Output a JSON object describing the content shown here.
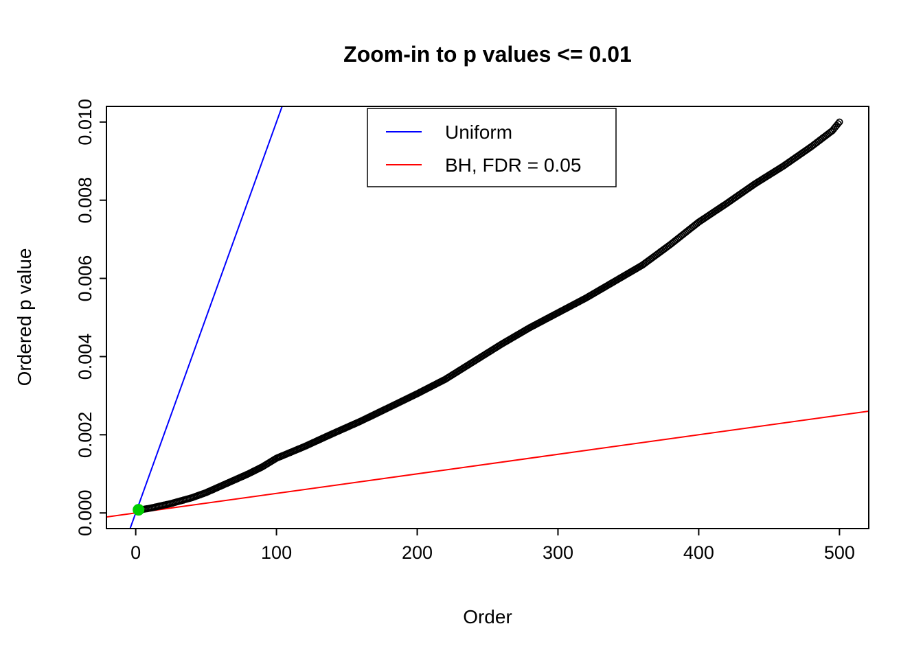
{
  "chart_data": {
    "type": "scatter",
    "title": "Zoom-in to p values <= 0.01",
    "xlabel": "Order",
    "ylabel": "Ordered p value",
    "xlim": [
      -20.8,
      520.8
    ],
    "ylim": [
      -0.0004,
      0.0104
    ],
    "x_ticks": [
      0,
      100,
      200,
      300,
      400,
      500
    ],
    "x_tick_labels": [
      "0",
      "100",
      "200",
      "300",
      "400",
      "500"
    ],
    "y_ticks": [
      0.0,
      0.002,
      0.004,
      0.006,
      0.008,
      0.01
    ],
    "y_tick_labels": [
      "0.000",
      "0.002",
      "0.004",
      "0.006",
      "0.008",
      "0.010"
    ],
    "grid": false,
    "series": {
      "observed": {
        "name": "ordered-p-values",
        "marker": "open-circle",
        "color": "#000000",
        "n_points": 500,
        "anchors": [
          [
            1,
            6e-05
          ],
          [
            5,
            9e-05
          ],
          [
            10,
            0.00012
          ],
          [
            15,
            0.00016
          ],
          [
            20,
            0.0002
          ],
          [
            25,
            0.00024
          ],
          [
            30,
            0.00029
          ],
          [
            40,
            0.00039
          ],
          [
            50,
            0.00052
          ],
          [
            60,
            0.00068
          ],
          [
            70,
            0.00084
          ],
          [
            80,
            0.001
          ],
          [
            90,
            0.00118
          ],
          [
            100,
            0.0014
          ],
          [
            120,
            0.0017
          ],
          [
            140,
            0.00203
          ],
          [
            160,
            0.00235
          ],
          [
            180,
            0.0027
          ],
          [
            200,
            0.00305
          ],
          [
            220,
            0.00342
          ],
          [
            240,
            0.00387
          ],
          [
            260,
            0.00432
          ],
          [
            280,
            0.00474
          ],
          [
            300,
            0.00512
          ],
          [
            320,
            0.0055
          ],
          [
            340,
            0.00592
          ],
          [
            360,
            0.00634
          ],
          [
            380,
            0.00687
          ],
          [
            400,
            0.00744
          ],
          [
            420,
            0.00792
          ],
          [
            440,
            0.00842
          ],
          [
            460,
            0.00887
          ],
          [
            480,
            0.00937
          ],
          [
            495,
            0.00978
          ],
          [
            500,
            0.01
          ]
        ]
      },
      "highlight_point": {
        "name": "bh-significant-point",
        "x": 2,
        "y": 8e-05,
        "color": "#00CD00"
      }
    },
    "lines": [
      {
        "name": "Uniform",
        "color": "#0000FF",
        "slope": 0.0001,
        "intercept": 0
      },
      {
        "name": "BH, FDR = 0.05",
        "color": "#FF0000",
        "slope": 5e-06,
        "intercept": 0
      }
    ],
    "legend": {
      "position": "top-center",
      "entries": [
        {
          "label": "Uniform",
          "color": "#0000FF"
        },
        {
          "label": "BH, FDR = 0.05",
          "color": "#FF0000"
        }
      ]
    }
  }
}
